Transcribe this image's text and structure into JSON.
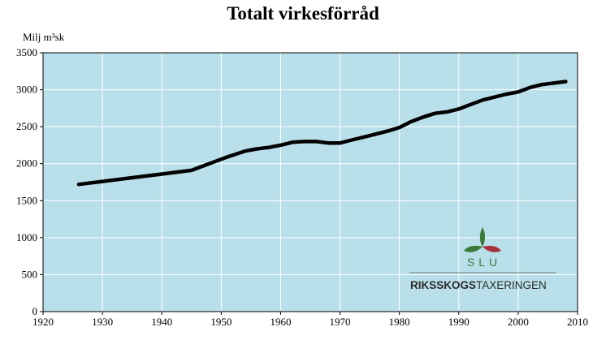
{
  "chart_data": {
    "type": "line",
    "title": "Totalt virkesförråd",
    "ylabel": "Milj m³sk",
    "xlabel": "",
    "xlim": [
      1920,
      2010
    ],
    "ylim": [
      0,
      3500
    ],
    "x_ticks": [
      1920,
      1930,
      1940,
      1950,
      1960,
      1970,
      1980,
      1990,
      2000,
      2010
    ],
    "y_ticks": [
      0,
      500,
      1000,
      1500,
      2000,
      2500,
      3000,
      3500
    ],
    "grid": true,
    "plot_background": "#b9e0ea",
    "line_color": "#000000",
    "x": [
      1926,
      1930,
      1935,
      1940,
      1945,
      1948,
      1951,
      1954,
      1956,
      1958,
      1960,
      1962,
      1964,
      1966,
      1968,
      1970,
      1972,
      1974,
      1976,
      1978,
      1980,
      1982,
      1984,
      1986,
      1988,
      1990,
      1992,
      1994,
      1996,
      1998,
      2000,
      2002,
      2004,
      2006,
      2008
    ],
    "values": [
      1720,
      1760,
      1810,
      1860,
      1910,
      2000,
      2090,
      2170,
      2200,
      2220,
      2250,
      2290,
      2300,
      2300,
      2280,
      2280,
      2320,
      2360,
      2400,
      2440,
      2490,
      2570,
      2630,
      2680,
      2700,
      2740,
      2800,
      2860,
      2900,
      2940,
      2970,
      3030,
      3070,
      3090,
      3110
    ]
  },
  "logo": {
    "acronym": "SLU",
    "name_bold": "RIKSSKOGS",
    "name_regular": "TAXERINGEN",
    "colors": {
      "leaf_green": "#3c7a3a",
      "leaf_red": "#a8323c"
    }
  }
}
